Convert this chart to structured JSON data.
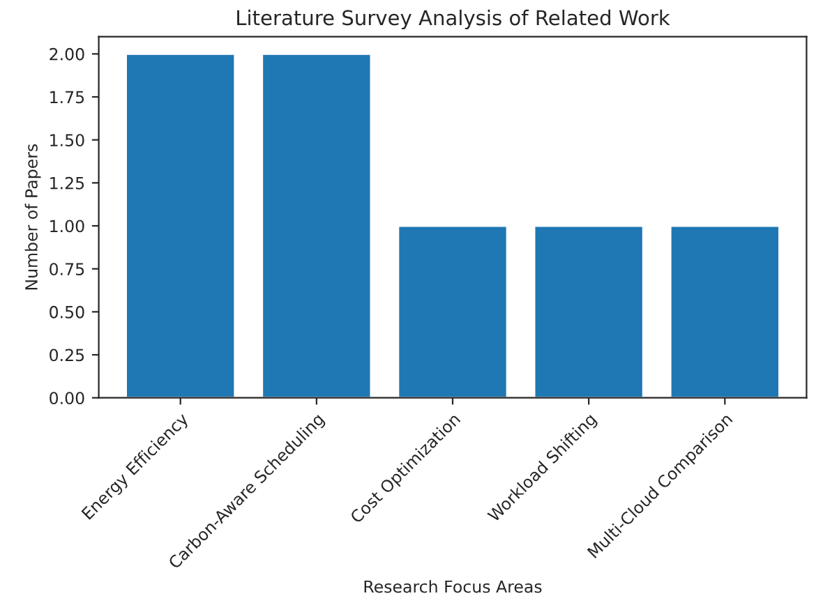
{
  "chart_data": {
    "type": "bar",
    "title": "Literature Survey Analysis of Related Work",
    "xlabel": "Research Focus Areas",
    "ylabel": "Number of Papers",
    "categories": [
      "Energy Efficiency",
      "Carbon-Aware Scheduling",
      "Cost Optimization",
      "Workload Shifting",
      "Multi-Cloud Comparison"
    ],
    "values": [
      2,
      2,
      1,
      1,
      1
    ],
    "color": "#1f77b4",
    "ylim": [
      0,
      2.1
    ],
    "yticks": [
      {
        "value": 0,
        "label": "0.00"
      },
      {
        "value": 0.25,
        "label": "0.25"
      },
      {
        "value": 0.5,
        "label": "0.50"
      },
      {
        "value": 0.75,
        "label": "0.75"
      },
      {
        "value": 1,
        "label": "1.00"
      },
      {
        "value": 1.25,
        "label": "1.25"
      },
      {
        "value": 1.5,
        "label": "1.50"
      },
      {
        "value": 1.75,
        "label": "1.75"
      },
      {
        "value": 2,
        "label": "2.00"
      }
    ],
    "grid": false,
    "legend": false
  }
}
